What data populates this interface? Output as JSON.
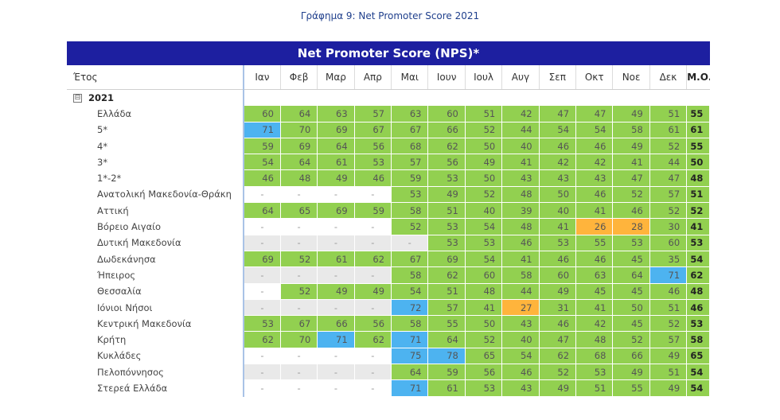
{
  "caption": "Γράφημα 9: Net Promoter Score 2021",
  "table_title": "Net Promoter Score (NPS)*",
  "colors": {
    "banner": "#1d1fa0",
    "green": "#92d050",
    "blue": "#4db3f0",
    "orange": "#ffb43c",
    "grey": "#e9e9e9"
  },
  "columns": {
    "label": "Έτος",
    "months": [
      "Ιαν",
      "Φεβ",
      "Μαρ",
      "Απρ",
      "Μαι",
      "Ιουν",
      "Ιουλ",
      "Αυγ",
      "Σεπ",
      "Οκτ",
      "Νοε",
      "Δεκ"
    ],
    "average": "Μ.Ο."
  },
  "group": {
    "expander_icon": "minus-box-icon",
    "expander": "⊟",
    "year": "2021"
  },
  "rows": [
    {
      "label": "Ελλάδα",
      "values": [
        "60",
        "64",
        "63",
        "57",
        "63",
        "60",
        "51",
        "42",
        "47",
        "47",
        "49",
        "51"
      ],
      "avg": "55",
      "colors": [
        "g",
        "g",
        "g",
        "g",
        "g",
        "g",
        "g",
        "g",
        "g",
        "g",
        "g",
        "g"
      ]
    },
    {
      "label": "5*",
      "values": [
        "71",
        "70",
        "69",
        "67",
        "67",
        "66",
        "52",
        "44",
        "54",
        "54",
        "58",
        "61"
      ],
      "avg": "61",
      "colors": [
        "b",
        "g",
        "g",
        "g",
        "g",
        "g",
        "g",
        "g",
        "g",
        "g",
        "g",
        "g"
      ]
    },
    {
      "label": "4*",
      "values": [
        "59",
        "69",
        "64",
        "56",
        "68",
        "62",
        "50",
        "40",
        "46",
        "46",
        "49",
        "52"
      ],
      "avg": "55",
      "colors": [
        "g",
        "g",
        "g",
        "g",
        "g",
        "g",
        "g",
        "g",
        "g",
        "g",
        "g",
        "g"
      ]
    },
    {
      "label": "3*",
      "values": [
        "54",
        "64",
        "61",
        "53",
        "57",
        "56",
        "49",
        "41",
        "42",
        "42",
        "41",
        "44"
      ],
      "avg": "50",
      "colors": [
        "g",
        "g",
        "g",
        "g",
        "g",
        "g",
        "g",
        "g",
        "g",
        "g",
        "g",
        "g"
      ]
    },
    {
      "label": "1*-2*",
      "values": [
        "46",
        "48",
        "49",
        "46",
        "59",
        "53",
        "50",
        "43",
        "43",
        "43",
        "47",
        "47"
      ],
      "avg": "48",
      "colors": [
        "g",
        "g",
        "g",
        "g",
        "g",
        "g",
        "g",
        "g",
        "g",
        "g",
        "g",
        "g"
      ]
    },
    {
      "label": "Ανατολική Μακεδονία-Θράκη",
      "values": [
        "-",
        "-",
        "-",
        "-",
        "53",
        "49",
        "52",
        "48",
        "50",
        "46",
        "52",
        "57"
      ],
      "avg": "51",
      "colors": [
        "w",
        "w",
        "w",
        "w",
        "g",
        "g",
        "g",
        "g",
        "g",
        "g",
        "g",
        "g"
      ]
    },
    {
      "label": "Αττική",
      "values": [
        "64",
        "65",
        "69",
        "59",
        "58",
        "51",
        "40",
        "39",
        "40",
        "41",
        "46",
        "52"
      ],
      "avg": "52",
      "colors": [
        "g",
        "g",
        "g",
        "g",
        "g",
        "g",
        "g",
        "g",
        "g",
        "g",
        "g",
        "g"
      ]
    },
    {
      "label": "Βόρειο Αιγαίο",
      "values": [
        "-",
        "-",
        "-",
        "-",
        "52",
        "53",
        "54",
        "48",
        "41",
        "26",
        "28",
        "30"
      ],
      "avg": "41",
      "colors": [
        "w",
        "w",
        "w",
        "w",
        "g",
        "g",
        "g",
        "g",
        "g",
        "o",
        "o",
        "g"
      ]
    },
    {
      "label": "Δυτική Μακεδονία",
      "values": [
        "-",
        "-",
        "-",
        "-",
        "-",
        "53",
        "53",
        "46",
        "53",
        "55",
        "53",
        "60"
      ],
      "avg": "53",
      "colors": [
        "n",
        "n",
        "n",
        "n",
        "n",
        "g",
        "g",
        "g",
        "g",
        "g",
        "g",
        "g"
      ]
    },
    {
      "label": "Δωδεκάνησα",
      "values": [
        "69",
        "52",
        "61",
        "62",
        "67",
        "69",
        "54",
        "41",
        "46",
        "46",
        "45",
        "35"
      ],
      "avg": "54",
      "colors": [
        "g",
        "g",
        "g",
        "g",
        "g",
        "g",
        "g",
        "g",
        "g",
        "g",
        "g",
        "g"
      ]
    },
    {
      "label": "Ήπειρος",
      "values": [
        "-",
        "-",
        "-",
        "-",
        "58",
        "62",
        "60",
        "58",
        "60",
        "63",
        "64",
        "71"
      ],
      "avg": "62",
      "colors": [
        "n",
        "n",
        "n",
        "n",
        "g",
        "g",
        "g",
        "g",
        "g",
        "g",
        "g",
        "b"
      ]
    },
    {
      "label": "Θεσσαλία",
      "values": [
        "-",
        "52",
        "49",
        "49",
        "54",
        "51",
        "48",
        "44",
        "49",
        "45",
        "45",
        "46"
      ],
      "avg": "48",
      "colors": [
        "w",
        "g",
        "g",
        "g",
        "g",
        "g",
        "g",
        "g",
        "g",
        "g",
        "g",
        "g"
      ]
    },
    {
      "label": "Ιόνιοι Νήσοι",
      "values": [
        "-",
        "-",
        "-",
        "-",
        "72",
        "57",
        "41",
        "27",
        "31",
        "41",
        "50",
        "51"
      ],
      "avg": "46",
      "colors": [
        "n",
        "n",
        "n",
        "n",
        "b",
        "g",
        "g",
        "o",
        "g",
        "g",
        "g",
        "g"
      ]
    },
    {
      "label": "Κεντρική Μακεδονία",
      "values": [
        "53",
        "67",
        "66",
        "56",
        "58",
        "55",
        "50",
        "43",
        "46",
        "42",
        "45",
        "52"
      ],
      "avg": "53",
      "colors": [
        "g",
        "g",
        "g",
        "g",
        "g",
        "g",
        "g",
        "g",
        "g",
        "g",
        "g",
        "g"
      ]
    },
    {
      "label": "Κρήτη",
      "values": [
        "62",
        "70",
        "71",
        "62",
        "71",
        "64",
        "52",
        "40",
        "47",
        "48",
        "52",
        "57"
      ],
      "avg": "58",
      "colors": [
        "g",
        "g",
        "b",
        "g",
        "b",
        "g",
        "g",
        "g",
        "g",
        "g",
        "g",
        "g"
      ]
    },
    {
      "label": "Κυκλάδες",
      "values": [
        "-",
        "-",
        "-",
        "-",
        "75",
        "78",
        "65",
        "54",
        "62",
        "68",
        "66",
        "49"
      ],
      "avg": "65",
      "colors": [
        "w",
        "w",
        "w",
        "w",
        "b",
        "b",
        "g",
        "g",
        "g",
        "g",
        "g",
        "g"
      ]
    },
    {
      "label": "Πελοπόννησος",
      "values": [
        "-",
        "-",
        "-",
        "-",
        "64",
        "59",
        "56",
        "46",
        "52",
        "53",
        "49",
        "51"
      ],
      "avg": "54",
      "colors": [
        "n",
        "n",
        "n",
        "n",
        "g",
        "g",
        "g",
        "g",
        "g",
        "g",
        "g",
        "g"
      ]
    },
    {
      "label": "Στερεά Ελλάδα",
      "values": [
        "-",
        "-",
        "-",
        "-",
        "71",
        "61",
        "53",
        "43",
        "49",
        "51",
        "55",
        "49"
      ],
      "avg": "54",
      "colors": [
        "w",
        "w",
        "w",
        "w",
        "b",
        "g",
        "g",
        "g",
        "g",
        "g",
        "g",
        "g"
      ]
    }
  ]
}
